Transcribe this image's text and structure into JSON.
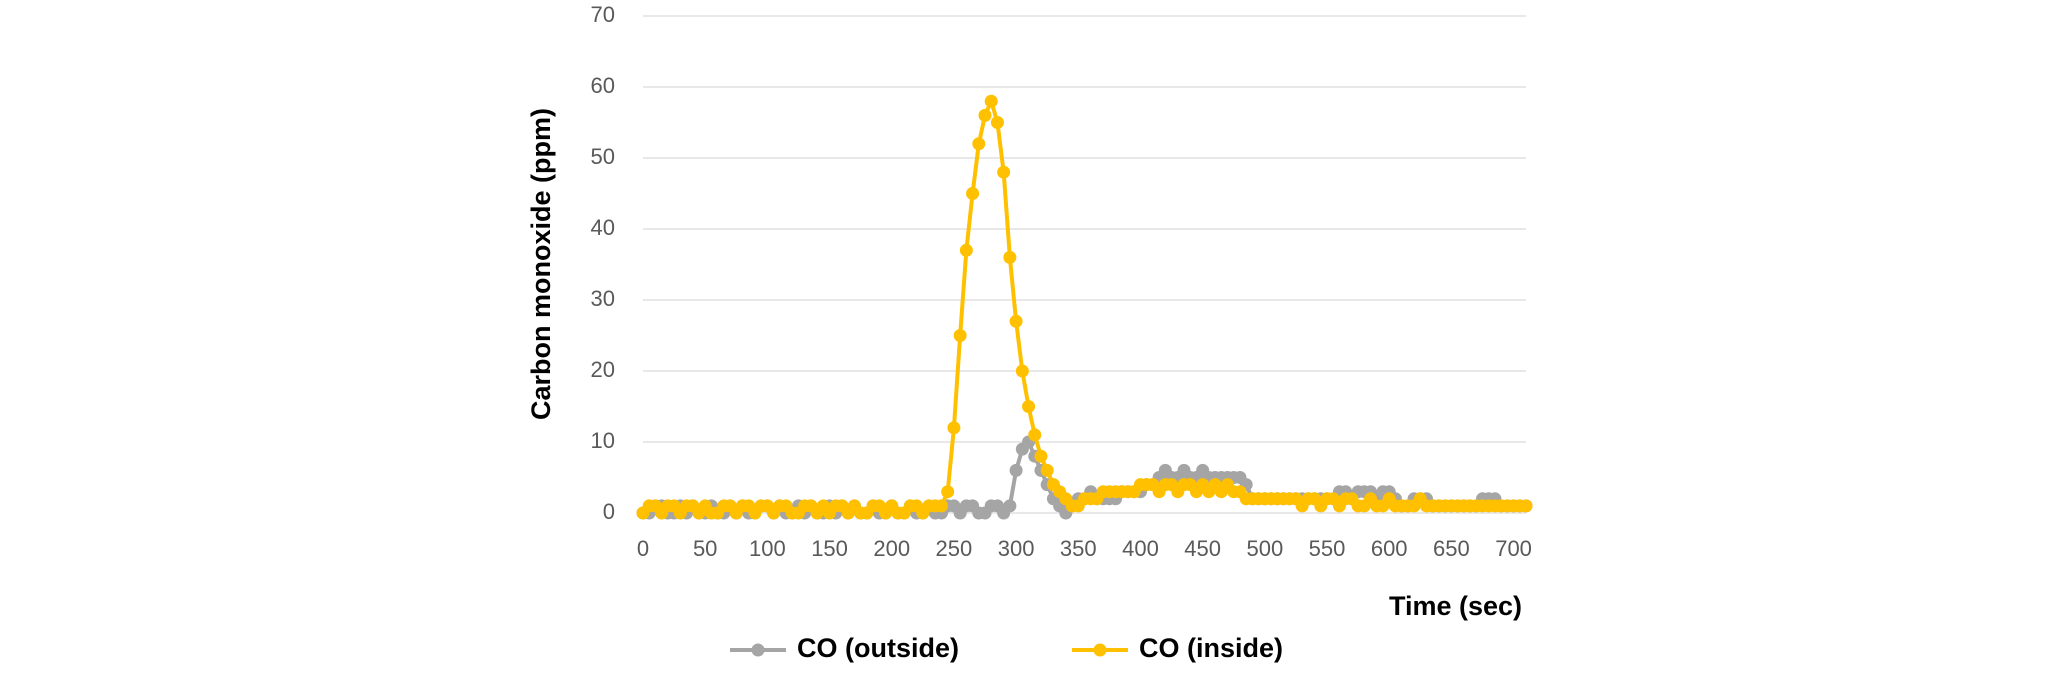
{
  "chart_data": {
    "type": "line",
    "xlabel": "Time (sec)",
    "ylabel": "Carbon monoxide (ppm)",
    "x": [
      0,
      5,
      10,
      15,
      20,
      25,
      30,
      35,
      40,
      45,
      50,
      55,
      60,
      65,
      70,
      75,
      80,
      85,
      90,
      95,
      100,
      105,
      110,
      115,
      120,
      125,
      130,
      135,
      140,
      145,
      150,
      155,
      160,
      165,
      170,
      175,
      180,
      185,
      190,
      195,
      200,
      205,
      210,
      215,
      220,
      225,
      230,
      235,
      240,
      245,
      250,
      255,
      260,
      265,
      270,
      275,
      280,
      285,
      290,
      295,
      300,
      305,
      310,
      315,
      320,
      325,
      330,
      335,
      340,
      345,
      350,
      355,
      360,
      365,
      370,
      375,
      380,
      385,
      390,
      395,
      400,
      405,
      410,
      415,
      420,
      425,
      430,
      435,
      440,
      445,
      450,
      455,
      460,
      465,
      470,
      475,
      480,
      485,
      490,
      495,
      500,
      505,
      510,
      515,
      520,
      525,
      530,
      535,
      540,
      545,
      550,
      555,
      560,
      565,
      570,
      575,
      580,
      585,
      590,
      595,
      600,
      605,
      610,
      615,
      620,
      625,
      630,
      635,
      640,
      645,
      650,
      655,
      660,
      665,
      670,
      675,
      680,
      685,
      690,
      695,
      700,
      705,
      710
    ],
    "series": [
      {
        "name": "CO (outside)",
        "color": "#a5a5a5",
        "values": [
          0,
          0,
          1,
          1,
          0,
          0,
          1,
          0,
          1,
          0,
          0,
          1,
          0,
          0,
          1,
          0,
          1,
          0,
          0,
          1,
          1,
          0,
          1,
          0,
          0,
          1,
          0,
          1,
          0,
          0,
          1,
          0,
          1,
          0,
          1,
          0,
          0,
          1,
          0,
          0,
          1,
          0,
          0,
          1,
          0,
          0,
          1,
          0,
          0,
          1,
          1,
          0,
          1,
          1,
          0,
          0,
          1,
          1,
          0,
          1,
          6,
          9,
          10,
          8,
          6,
          4,
          2,
          1,
          0,
          1,
          2,
          2,
          3,
          2,
          2,
          2,
          2,
          3,
          3,
          3,
          3,
          4,
          4,
          5,
          6,
          5,
          5,
          6,
          5,
          5,
          6,
          5,
          5,
          5,
          5,
          5,
          5,
          4,
          2,
          2,
          2,
          2,
          2,
          2,
          2,
          2,
          2,
          2,
          2,
          2,
          2,
          2,
          3,
          3,
          2,
          3,
          3,
          3,
          2,
          3,
          3,
          2,
          1,
          1,
          2,
          2,
          2,
          1,
          1,
          1,
          1,
          1,
          1,
          1,
          1,
          2,
          2,
          2,
          1,
          1,
          1,
          1,
          1
        ]
      },
      {
        "name": "CO (inside)",
        "color": "#ffc000",
        "values": [
          0,
          1,
          1,
          0,
          1,
          1,
          0,
          1,
          1,
          0,
          1,
          0,
          0,
          1,
          1,
          0,
          1,
          1,
          0,
          1,
          1,
          0,
          1,
          1,
          0,
          0,
          1,
          1,
          0,
          1,
          0,
          1,
          1,
          0,
          1,
          0,
          0,
          1,
          1,
          0,
          1,
          0,
          0,
          1,
          1,
          0,
          1,
          1,
          1,
          3,
          12,
          25,
          37,
          45,
          52,
          56,
          58,
          55,
          48,
          36,
          27,
          20,
          15,
          11,
          8,
          6,
          4,
          3,
          2,
          1,
          1,
          2,
          2,
          2,
          3,
          3,
          3,
          3,
          3,
          3,
          4,
          4,
          4,
          3,
          4,
          4,
          3,
          4,
          4,
          3,
          4,
          3,
          4,
          3,
          4,
          3,
          3,
          2,
          2,
          2,
          2,
          2,
          2,
          2,
          2,
          2,
          1,
          2,
          2,
          1,
          2,
          2,
          1,
          2,
          2,
          1,
          1,
          2,
          1,
          1,
          2,
          1,
          1,
          1,
          1,
          2,
          1,
          1,
          1,
          1,
          1,
          1,
          1,
          1,
          1,
          1,
          1,
          1,
          1,
          1,
          1,
          1,
          1
        ]
      }
    ],
    "xlim": [
      0,
      710
    ],
    "xticks": [
      0,
      50,
      100,
      150,
      200,
      250,
      300,
      350,
      400,
      450,
      500,
      550,
      600,
      650,
      700
    ],
    "ylim": [
      0,
      70
    ],
    "yticks": [
      0,
      10,
      20,
      30,
      40,
      50,
      60,
      70
    ],
    "grid": true,
    "legend": "bottom"
  }
}
